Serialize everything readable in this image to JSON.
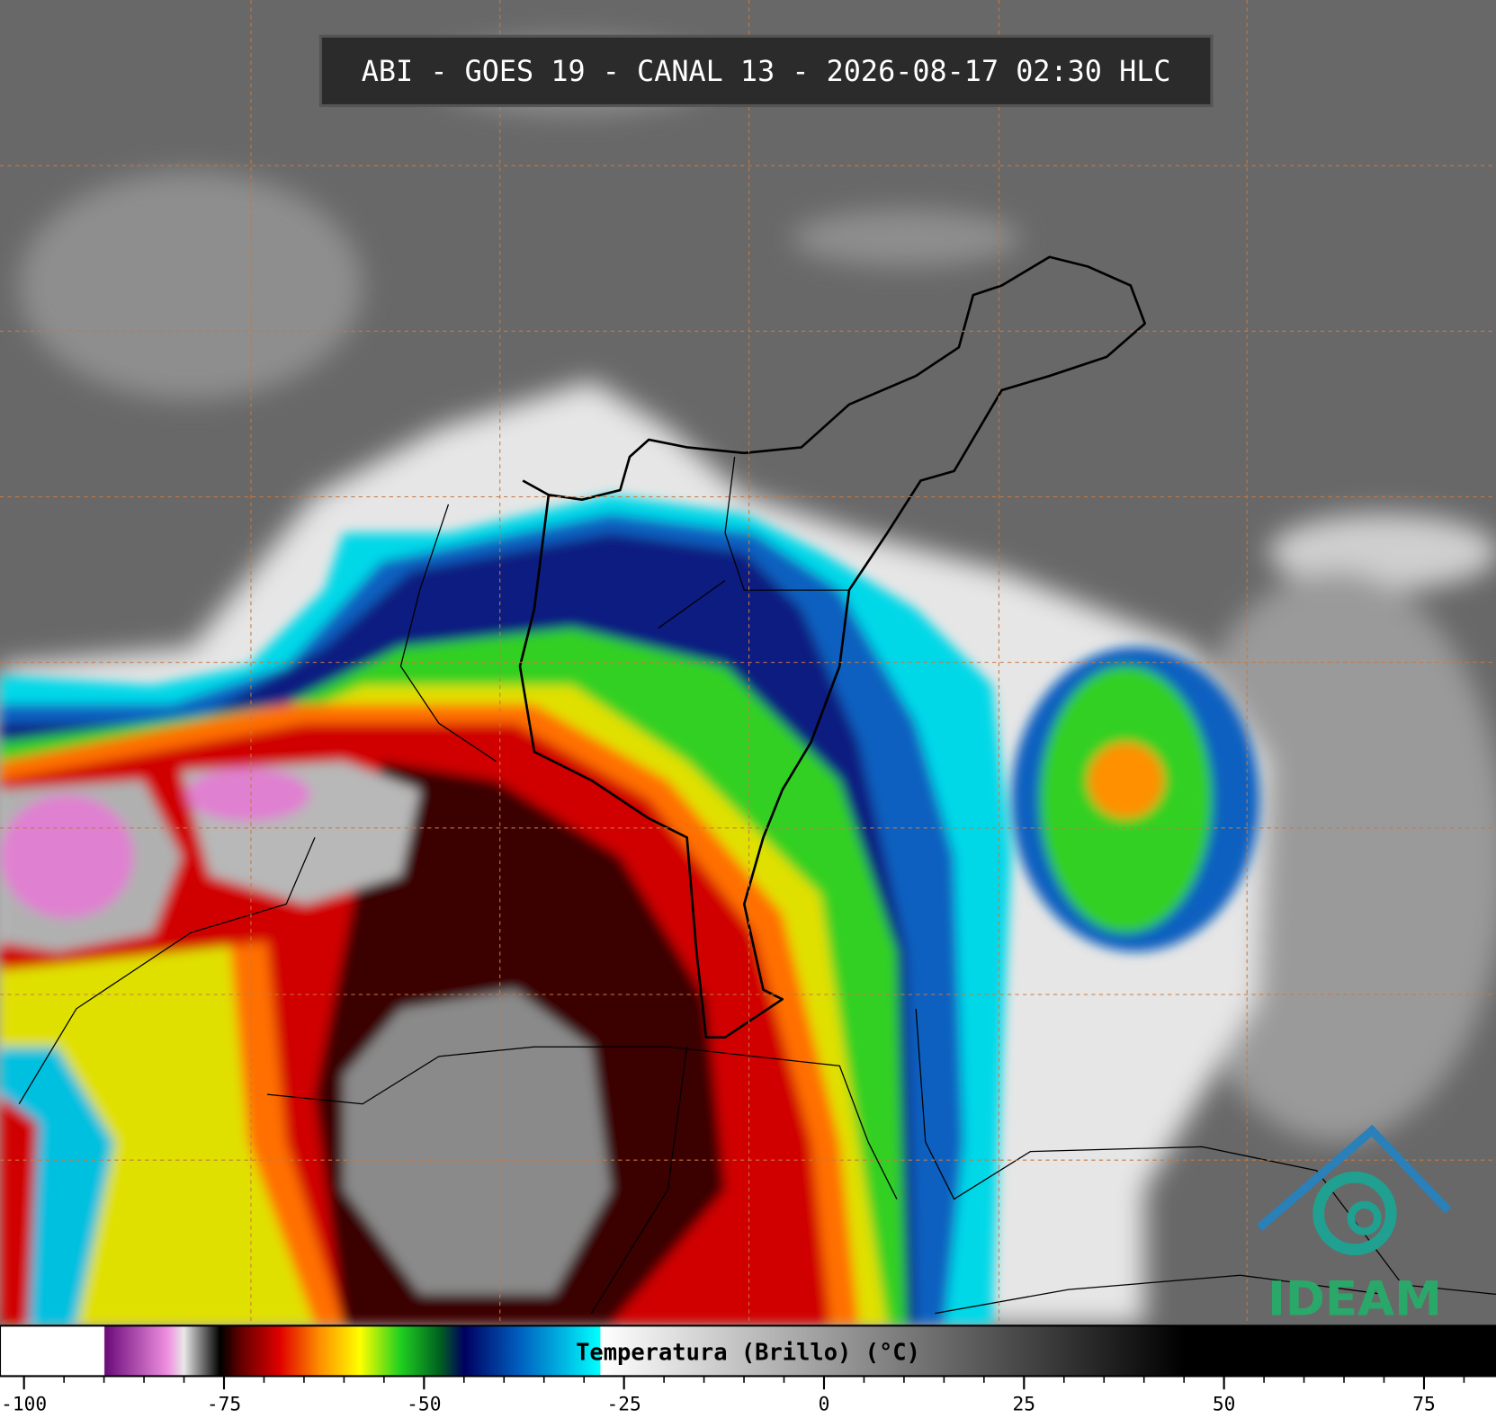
{
  "title": "ABI - GOES 19 - CANAL 13 - 2026-08-17 02:30 HLC",
  "logo": "IDEAM",
  "colorbar": {
    "label": "Temperatura (Brillo) (°C)",
    "range": [
      -103,
      84
    ],
    "ticks": [
      -100,
      -75,
      -50,
      -25,
      0,
      25,
      50,
      75
    ],
    "minor_tick_step": 5,
    "colormap": [
      {
        "value": -103,
        "color": "#ffffff"
      },
      {
        "value": -90,
        "color": "#ffffff"
      },
      {
        "value": -89.9,
        "color": "#6a0a7a"
      },
      {
        "value": -82,
        "color": "#f090e0"
      },
      {
        "value": -80,
        "color": "#e8e8e8"
      },
      {
        "value": -75.5,
        "color": "#000000"
      },
      {
        "value": -73,
        "color": "#600000"
      },
      {
        "value": -68,
        "color": "#e00000"
      },
      {
        "value": -63,
        "color": "#ff9000"
      },
      {
        "value": -58,
        "color": "#ffff00"
      },
      {
        "value": -53,
        "color": "#20d020"
      },
      {
        "value": -48,
        "color": "#006020"
      },
      {
        "value": -45,
        "color": "#000060"
      },
      {
        "value": -38,
        "color": "#0060c0"
      },
      {
        "value": -28,
        "color": "#00ffff"
      },
      {
        "value": -27.9,
        "color": "#ffffff"
      },
      {
        "value": 45,
        "color": "#000000"
      },
      {
        "value": 84,
        "color": "#000000"
      }
    ]
  }
}
